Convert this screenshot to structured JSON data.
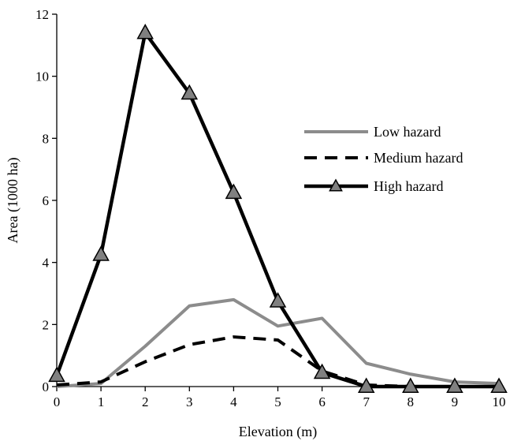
{
  "chart_data": {
    "type": "line",
    "xlabel": "Elevation (m)",
    "ylabel": "Area (1000 ha)",
    "x": [
      0,
      1,
      2,
      3,
      4,
      5,
      6,
      7,
      8,
      9,
      10
    ],
    "xlim": [
      0,
      10
    ],
    "ylim": [
      0,
      12
    ],
    "xticks": [
      "0",
      "1",
      "2",
      "3",
      "4",
      "5",
      "6",
      "7",
      "8",
      "9",
      "10"
    ],
    "yticks": [
      "0",
      "2",
      "4",
      "6",
      "8",
      "10",
      "12"
    ],
    "grid": false,
    "legend_position": "right",
    "series": [
      {
        "name": "Low hazard",
        "style": "solid",
        "color": "#8c8c8c",
        "marker": "none",
        "values": [
          0.0,
          0.1,
          1.3,
          2.6,
          2.8,
          1.95,
          2.2,
          0.75,
          0.4,
          0.15,
          0.1
        ]
      },
      {
        "name": "Medium hazard",
        "style": "dashed",
        "color": "#000000",
        "marker": "none",
        "values": [
          0.05,
          0.15,
          0.8,
          1.35,
          1.6,
          1.5,
          0.5,
          0.05,
          0.0,
          0.0,
          0.0
        ]
      },
      {
        "name": "High hazard",
        "style": "solid",
        "color": "#000000",
        "marker": "triangle",
        "values": [
          0.35,
          4.25,
          11.4,
          9.45,
          6.25,
          2.75,
          0.45,
          0.0,
          0.0,
          0.0,
          0.0
        ]
      }
    ]
  }
}
